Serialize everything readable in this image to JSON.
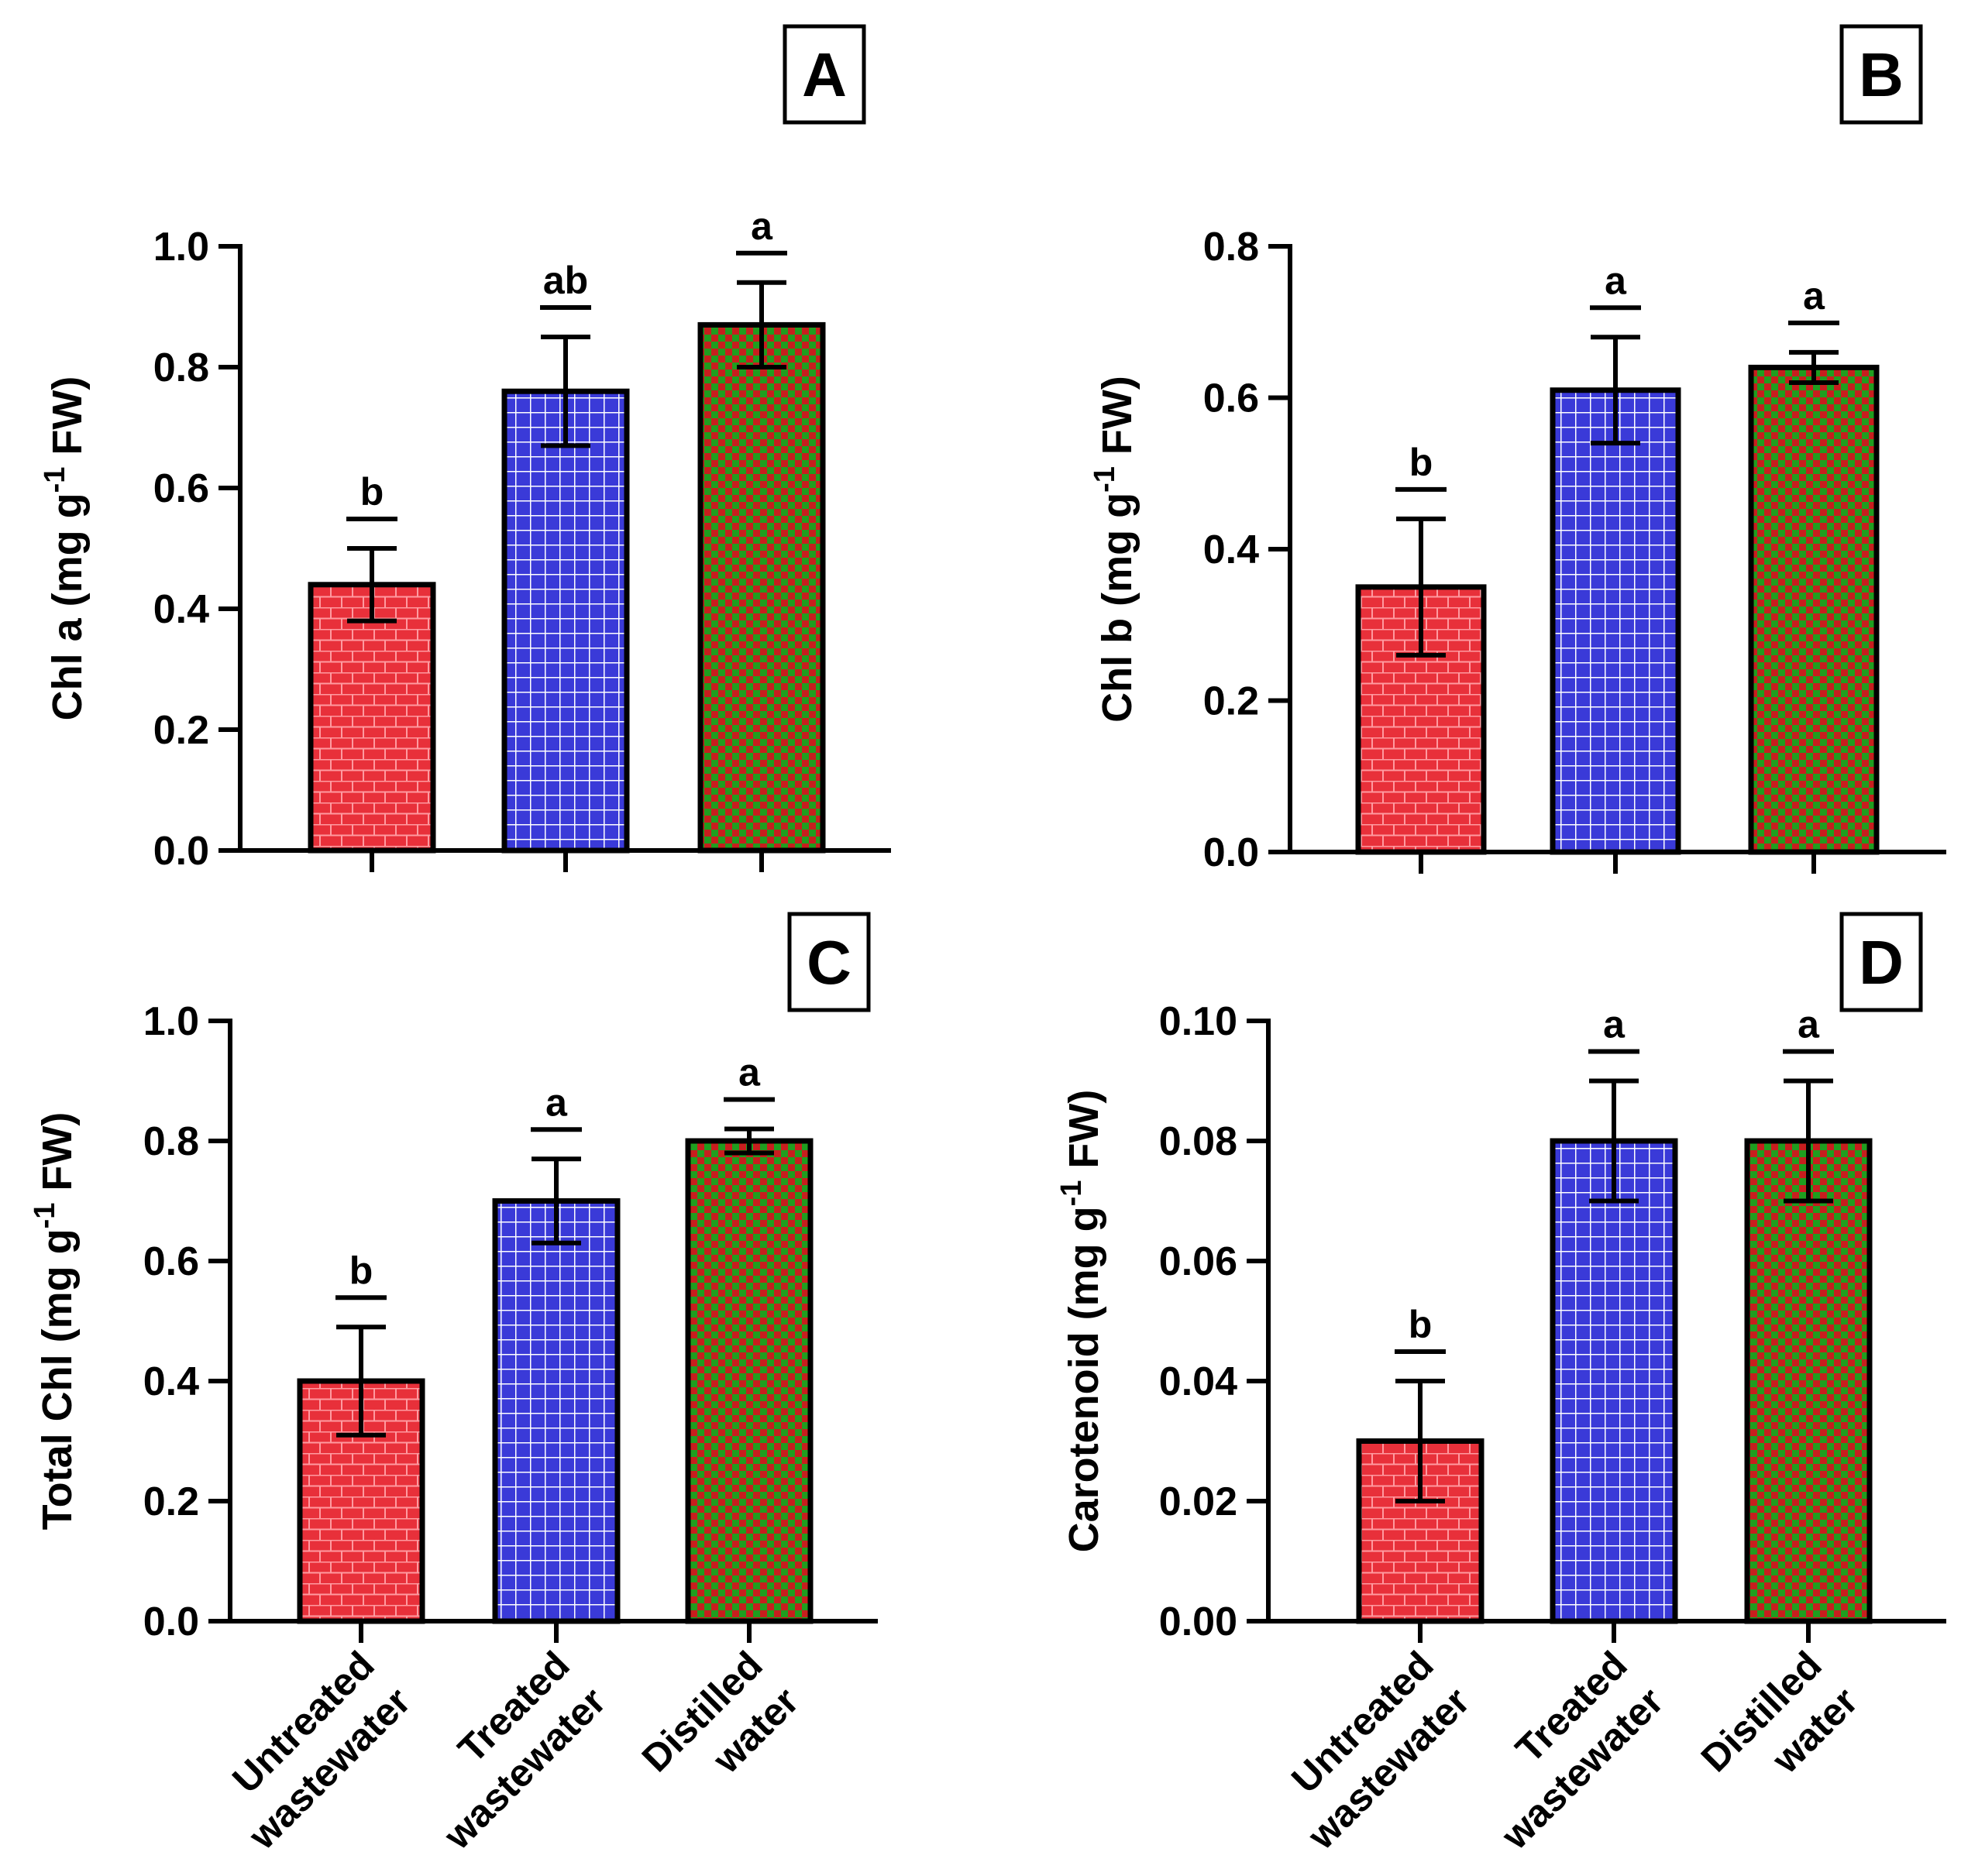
{
  "figure": {
    "x_categories": [
      "Untreated wastewater",
      "Treated wastewater",
      "Distilled water"
    ],
    "x_tick_lines": [
      [
        "Untreated",
        "wastewater"
      ],
      [
        "Treated",
        "wastewater"
      ],
      [
        "Distilled",
        "water"
      ]
    ],
    "bar_colors": {
      "untreated": "#e8303a",
      "treated": "#3a3ad8",
      "distilled": "#1f9e1f",
      "grid_red": "#ff9aa0",
      "grid_blue": "#ffffff",
      "check_red": "#c81e1e"
    }
  },
  "chart_data": [
    {
      "type": "bar",
      "panel": "A",
      "ylabel": "Chl a (mg g-1 FW)",
      "ylim": [
        0,
        1.0
      ],
      "yticks": [
        "0.0",
        "0.2",
        "0.4",
        "0.6",
        "0.8",
        "1.0"
      ],
      "categories": [
        "Untreated wastewater",
        "Treated wastewater",
        "Distilled water"
      ],
      "values": [
        0.44,
        0.76,
        0.87
      ],
      "errors": [
        0.06,
        0.09,
        0.07
      ],
      "letters": [
        "b",
        "ab",
        "a"
      ]
    },
    {
      "type": "bar",
      "panel": "B",
      "ylabel": "Chl b (mg g-1 FW)",
      "ylim": [
        0,
        0.8
      ],
      "yticks": [
        "0.0",
        "0.2",
        "0.4",
        "0.6",
        "0.8"
      ],
      "categories": [
        "Untreated wastewater",
        "Treated wastewater",
        "Distilled water"
      ],
      "values": [
        0.35,
        0.61,
        0.64
      ],
      "errors": [
        0.09,
        0.07,
        0.02
      ],
      "letters": [
        "b",
        "a",
        "a"
      ]
    },
    {
      "type": "bar",
      "panel": "C",
      "ylabel": "Total Chl (mg g-1 FW)",
      "ylim": [
        0,
        1.0
      ],
      "yticks": [
        "0.0",
        "0.2",
        "0.4",
        "0.6",
        "0.8",
        "1.0"
      ],
      "categories": [
        "Untreated wastewater",
        "Treated wastewater",
        "Distilled water"
      ],
      "values": [
        0.4,
        0.7,
        0.8
      ],
      "errors": [
        0.09,
        0.07,
        0.02
      ],
      "letters": [
        "b",
        "a",
        "a"
      ]
    },
    {
      "type": "bar",
      "panel": "D",
      "ylabel": "Carotenoid (mg g-1 FW)",
      "ylim": [
        0,
        0.1
      ],
      "yticks": [
        "0.00",
        "0.02",
        "0.04",
        "0.06",
        "0.08",
        "0.10"
      ],
      "categories": [
        "Untreated wastewater",
        "Treated wastewater",
        "Distilled water"
      ],
      "values": [
        0.03,
        0.08,
        0.08
      ],
      "errors": [
        0.01,
        0.01,
        0.01
      ],
      "letters": [
        "b",
        "a",
        "a"
      ]
    }
  ]
}
